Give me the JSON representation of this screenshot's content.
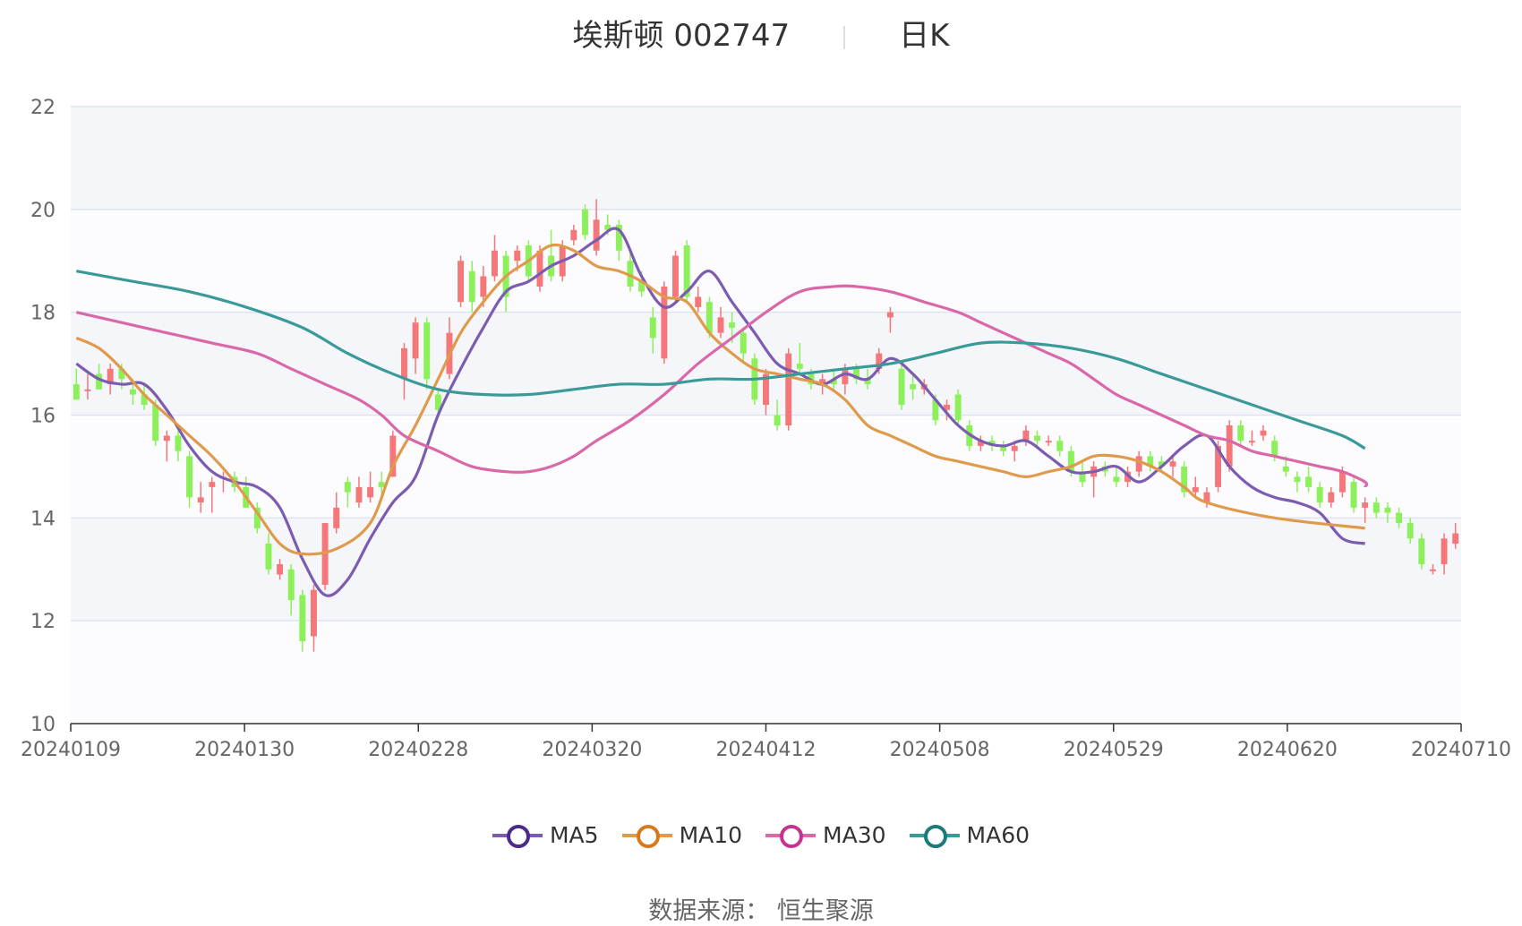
{
  "title": {
    "stock": "埃斯顿 002747",
    "period": "日K"
  },
  "source": "数据来源： 恒生聚源",
  "chart_data": {
    "type": "candlestick",
    "y_ticks": [
      10,
      12,
      14,
      16,
      18,
      20,
      22
    ],
    "ylim": [
      10,
      22
    ],
    "x_ticks": [
      "20240109",
      "20240130",
      "20240228",
      "20240320",
      "20240412",
      "20240508",
      "20240529",
      "20240620",
      "20240710"
    ],
    "colors": {
      "up": "#f4777a",
      "down": "#8cf05a",
      "band": "#f5f6fa",
      "grid": "#dfe3f0"
    },
    "candles": [
      [
        16.6,
        16.3,
        16.9,
        16.3
      ],
      [
        16.5,
        16.5,
        16.8,
        16.3
      ],
      [
        16.8,
        16.5,
        17.0,
        16.5
      ],
      [
        16.6,
        16.9,
        17.0,
        16.4
      ],
      [
        16.9,
        16.7,
        17.0,
        16.5
      ],
      [
        16.5,
        16.4,
        16.7,
        16.2
      ],
      [
        16.4,
        16.2,
        16.6,
        16.1
      ],
      [
        16.2,
        15.5,
        16.3,
        15.4
      ],
      [
        15.5,
        15.6,
        15.7,
        15.1
      ],
      [
        15.6,
        15.3,
        15.7,
        15.1
      ],
      [
        15.2,
        14.4,
        15.3,
        14.2
      ],
      [
        14.3,
        14.4,
        14.7,
        14.1
      ],
      [
        14.6,
        14.7,
        14.8,
        14.1
      ],
      [
        14.8,
        14.8,
        14.9,
        14.5
      ],
      [
        14.8,
        14.6,
        14.9,
        14.5
      ],
      [
        14.6,
        14.2,
        14.8,
        14.2
      ],
      [
        14.2,
        13.8,
        14.3,
        13.7
      ],
      [
        13.5,
        13.0,
        13.7,
        12.9
      ],
      [
        12.9,
        13.1,
        13.2,
        12.8
      ],
      [
        13.0,
        12.4,
        13.1,
        12.1
      ],
      [
        12.5,
        11.6,
        12.6,
        11.4
      ],
      [
        11.7,
        12.6,
        12.7,
        11.4
      ],
      [
        12.7,
        13.9,
        13.9,
        12.6
      ],
      [
        13.8,
        14.2,
        14.5,
        13.7
      ],
      [
        14.7,
        14.5,
        14.8,
        14.2
      ],
      [
        14.3,
        14.6,
        14.8,
        14.2
      ],
      [
        14.4,
        14.6,
        14.9,
        14.3
      ],
      [
        14.7,
        14.6,
        14.9,
        14.4
      ],
      [
        14.8,
        15.6,
        15.7,
        14.8
      ],
      [
        16.7,
        17.3,
        17.4,
        16.3
      ],
      [
        17.1,
        17.8,
        17.9,
        16.8
      ],
      [
        17.8,
        16.7,
        17.9,
        16.5
      ],
      [
        16.4,
        16.1,
        16.5,
        16.0
      ],
      [
        16.8,
        17.6,
        17.9,
        16.7
      ],
      [
        18.2,
        19.0,
        19.1,
        18.1
      ],
      [
        18.8,
        18.2,
        19.0,
        18.0
      ],
      [
        18.3,
        18.7,
        18.9,
        18.1
      ],
      [
        18.7,
        19.2,
        19.5,
        18.6
      ],
      [
        19.1,
        18.3,
        19.2,
        18.0
      ],
      [
        19.0,
        19.2,
        19.3,
        18.8
      ],
      [
        19.3,
        18.7,
        19.4,
        18.6
      ],
      [
        18.5,
        19.2,
        19.3,
        18.4
      ],
      [
        19.1,
        18.7,
        19.6,
        18.6
      ],
      [
        18.7,
        19.3,
        19.4,
        18.6
      ],
      [
        19.4,
        19.6,
        19.7,
        19.3
      ],
      [
        20.0,
        19.5,
        20.1,
        19.4
      ],
      [
        19.2,
        19.8,
        20.2,
        19.1
      ],
      [
        19.7,
        19.6,
        19.9,
        19.5
      ],
      [
        19.7,
        19.2,
        19.8,
        19.0
      ],
      [
        19.0,
        18.5,
        19.2,
        18.4
      ],
      [
        18.6,
        18.4,
        18.8,
        18.3
      ],
      [
        17.9,
        17.5,
        18.1,
        17.2
      ],
      [
        17.1,
        18.5,
        18.6,
        17.0
      ],
      [
        18.3,
        19.1,
        19.2,
        18.2
      ],
      [
        19.3,
        18.3,
        19.4,
        18.2
      ],
      [
        18.1,
        18.3,
        18.5,
        18.0
      ],
      [
        18.2,
        17.6,
        18.3,
        17.5
      ],
      [
        17.6,
        17.9,
        18.1,
        17.5
      ],
      [
        17.8,
        17.7,
        18.0,
        17.4
      ],
      [
        17.6,
        17.2,
        17.7,
        17.0
      ],
      [
        17.1,
        16.3,
        17.2,
        16.2
      ],
      [
        16.2,
        16.8,
        16.9,
        16.0
      ],
      [
        16.0,
        15.8,
        16.3,
        15.7
      ],
      [
        15.8,
        17.2,
        17.3,
        15.7
      ],
      [
        17.0,
        16.9,
        17.4,
        16.8
      ],
      [
        16.8,
        16.6,
        16.9,
        16.5
      ],
      [
        16.6,
        16.7,
        16.8,
        16.4
      ],
      [
        16.7,
        16.6,
        16.9,
        16.5
      ],
      [
        16.6,
        16.9,
        17.0,
        16.4
      ],
      [
        16.9,
        16.7,
        17.0,
        16.6
      ],
      [
        16.7,
        16.6,
        16.9,
        16.5
      ],
      [
        16.9,
        17.2,
        17.3,
        16.8
      ],
      [
        17.9,
        18.0,
        18.1,
        17.6
      ],
      [
        16.9,
        16.2,
        17.0,
        16.1
      ],
      [
        16.6,
        16.5,
        16.8,
        16.3
      ],
      [
        16.5,
        16.6,
        16.7,
        16.4
      ],
      [
        16.3,
        15.9,
        16.4,
        15.8
      ],
      [
        16.1,
        16.2,
        16.3,
        15.9
      ],
      [
        16.4,
        15.9,
        16.5,
        15.8
      ],
      [
        15.8,
        15.4,
        15.9,
        15.3
      ],
      [
        15.4,
        15.5,
        15.6,
        15.3
      ],
      [
        15.5,
        15.4,
        15.6,
        15.3
      ],
      [
        15.4,
        15.3,
        15.5,
        15.2
      ],
      [
        15.3,
        15.4,
        15.5,
        15.1
      ],
      [
        15.5,
        15.7,
        15.8,
        15.4
      ],
      [
        15.6,
        15.5,
        15.7,
        15.4
      ],
      [
        15.5,
        15.5,
        15.6,
        15.4
      ],
      [
        15.5,
        15.3,
        15.6,
        15.2
      ],
      [
        15.3,
        14.9,
        15.4,
        14.8
      ],
      [
        14.9,
        14.7,
        15.1,
        14.6
      ],
      [
        14.8,
        15.0,
        15.1,
        14.4
      ],
      [
        15.0,
        14.9,
        15.1,
        14.8
      ],
      [
        14.8,
        14.7,
        15.0,
        14.6
      ],
      [
        14.7,
        14.9,
        15.0,
        14.6
      ],
      [
        14.9,
        15.2,
        15.3,
        14.8
      ],
      [
        15.2,
        15.0,
        15.3,
        14.9
      ],
      [
        15.1,
        15.0,
        15.2,
        14.9
      ],
      [
        15.0,
        15.1,
        15.2,
        14.8
      ],
      [
        15.0,
        14.5,
        15.1,
        14.4
      ],
      [
        14.5,
        14.6,
        14.8,
        14.4
      ],
      [
        14.3,
        14.5,
        14.6,
        14.2
      ],
      [
        14.6,
        15.4,
        15.5,
        14.5
      ],
      [
        15.0,
        15.8,
        15.9,
        14.9
      ],
      [
        15.8,
        15.5,
        15.9,
        15.4
      ],
      [
        15.5,
        15.5,
        15.7,
        15.4
      ],
      [
        15.6,
        15.7,
        15.8,
        15.5
      ],
      [
        15.5,
        15.2,
        15.6,
        15.1
      ],
      [
        15.0,
        14.9,
        15.2,
        14.8
      ],
      [
        14.8,
        14.7,
        14.9,
        14.5
      ],
      [
        14.8,
        14.6,
        15.0,
        14.5
      ],
      [
        14.6,
        14.3,
        14.7,
        14.2
      ],
      [
        14.3,
        14.5,
        14.6,
        14.2
      ],
      [
        14.5,
        14.9,
        15.0,
        14.4
      ],
      [
        14.7,
        14.2,
        14.8,
        14.1
      ],
      [
        14.2,
        14.3,
        14.4,
        13.9
      ],
      [
        14.3,
        14.1,
        14.4,
        14.0
      ],
      [
        14.2,
        14.1,
        14.3,
        13.9
      ],
      [
        14.1,
        13.9,
        14.2,
        13.8
      ],
      [
        13.9,
        13.6,
        14.0,
        13.5
      ],
      [
        13.6,
        13.1,
        13.7,
        13.0
      ],
      [
        13.0,
        13.0,
        13.1,
        12.9
      ],
      [
        13.1,
        13.6,
        13.7,
        12.9
      ],
      [
        13.5,
        13.7,
        13.9,
        13.4
      ]
    ],
    "series": [
      {
        "name": "MA5",
        "color": "#7b5cb0",
        "values": [
          17.0,
          16.7,
          16.6,
          16.6,
          16.1,
          15.4,
          14.9,
          14.7,
          14.6,
          14.2,
          13.2,
          12.5,
          12.8,
          13.6,
          14.3,
          14.8,
          16.0,
          16.9,
          17.7,
          18.4,
          18.6,
          18.9,
          19.1,
          19.4,
          19.6,
          18.7,
          18.1,
          18.4,
          18.8,
          18.2,
          17.6,
          17.0,
          16.8,
          16.6,
          16.8,
          16.7,
          17.1,
          16.8,
          16.3,
          15.8,
          15.5,
          15.4,
          15.5,
          15.2,
          14.9,
          14.9,
          15.0,
          14.7,
          15.0,
          15.4,
          15.6,
          15.0,
          14.6,
          14.4,
          14.3,
          14.1,
          13.6,
          13.5
        ],
        "x": [
          0,
          2,
          4,
          6,
          8,
          10,
          12,
          14,
          16,
          18,
          20,
          22,
          24,
          26,
          28,
          30,
          32,
          34,
          36,
          38,
          40,
          42,
          44,
          46,
          48,
          50,
          52,
          54,
          56,
          58,
          60,
          62,
          64,
          66,
          68,
          70,
          72,
          74,
          76,
          78,
          80,
          82,
          84,
          86,
          88,
          90,
          92,
          94,
          96,
          98,
          100,
          102,
          104,
          106,
          108,
          110,
          112,
          114
        ]
      },
      {
        "name": "MA10",
        "color": "#e09a4c",
        "values": [
          17.5,
          17.3,
          16.9,
          16.4,
          16.0,
          15.6,
          15.2,
          14.7,
          14.1,
          13.5,
          13.3,
          13.4,
          13.9,
          15.0,
          15.8,
          16.7,
          17.6,
          18.2,
          18.7,
          19.0,
          19.3,
          19.2,
          18.9,
          18.8,
          18.6,
          18.3,
          18.2,
          17.6,
          17.2,
          16.9,
          16.8,
          16.7,
          16.6,
          16.3,
          15.8,
          15.6,
          15.4,
          15.2,
          15.1,
          15.0,
          14.9,
          14.8,
          14.9,
          15.0,
          15.2,
          15.2,
          15.1,
          14.9,
          14.6,
          14.3,
          14.0,
          13.8
        ],
        "x": [
          0,
          2,
          4,
          6,
          8,
          10,
          12,
          14,
          16,
          18,
          20,
          23,
          26,
          28,
          30,
          32,
          34,
          36,
          38,
          40,
          42,
          44,
          46,
          48,
          50,
          52,
          54,
          56,
          58,
          60,
          62,
          64,
          66,
          68,
          70,
          72,
          74,
          76,
          78,
          80,
          82,
          84,
          86,
          88,
          90,
          92,
          94,
          96,
          98,
          100,
          106,
          114
        ]
      },
      {
        "name": "MA30",
        "color": "#d968a8",
        "values": [
          18.0,
          17.8,
          17.6,
          17.4,
          17.2,
          16.9,
          16.6,
          16.3,
          16.0,
          15.6,
          15.3,
          15.0,
          14.9,
          14.9,
          15.0,
          15.2,
          15.5,
          15.9,
          16.4,
          17.0,
          17.5,
          18.0,
          18.4,
          18.5,
          18.5,
          18.4,
          18.2,
          18.0,
          17.8,
          17.5,
          17.2,
          17.0,
          16.7,
          16.4,
          16.2,
          16.0,
          15.8,
          15.6,
          15.5,
          15.3,
          15.2,
          15.1,
          15.0,
          14.9,
          14.7,
          14.6
        ],
        "x": [
          0,
          4,
          8,
          12,
          16,
          19,
          22,
          25,
          27,
          29,
          32,
          35,
          38,
          40,
          42,
          44,
          46,
          49,
          52,
          55,
          58,
          61,
          64,
          67,
          69,
          72,
          75,
          78,
          80,
          83,
          86,
          88,
          90,
          92,
          94,
          96,
          98,
          100,
          102,
          104,
          106,
          108,
          110,
          112,
          114,
          114
        ]
      },
      {
        "name": "MA60",
        "color": "#3a9a9a",
        "values": [
          18.8,
          18.6,
          18.4,
          18.1,
          17.7,
          17.2,
          16.8,
          16.5,
          16.4,
          16.4,
          16.5,
          16.6,
          16.6,
          16.7,
          16.7,
          16.8,
          16.9,
          17.0,
          17.2,
          17.4,
          17.4,
          17.3,
          17.1,
          16.8,
          16.5,
          16.2,
          15.9,
          15.6,
          15.35
        ],
        "x": [
          0,
          5,
          10,
          15,
          20,
          24,
          28,
          32,
          36,
          40,
          44,
          48,
          52,
          56,
          60,
          64,
          68,
          72,
          76,
          80,
          84,
          88,
          92,
          96,
          100,
          104,
          108,
          112,
          114
        ]
      }
    ]
  },
  "legend": [
    {
      "label": "MA5",
      "color": "#4b2a8a",
      "line": "#7b5cb0"
    },
    {
      "label": "MA10",
      "color": "#d87a1c",
      "line": "#e09a4c"
    },
    {
      "label": "MA30",
      "color": "#c5338e",
      "line": "#d968a8"
    },
    {
      "label": "MA60",
      "color": "#1b7a7a",
      "line": "#3a9a9a"
    }
  ]
}
